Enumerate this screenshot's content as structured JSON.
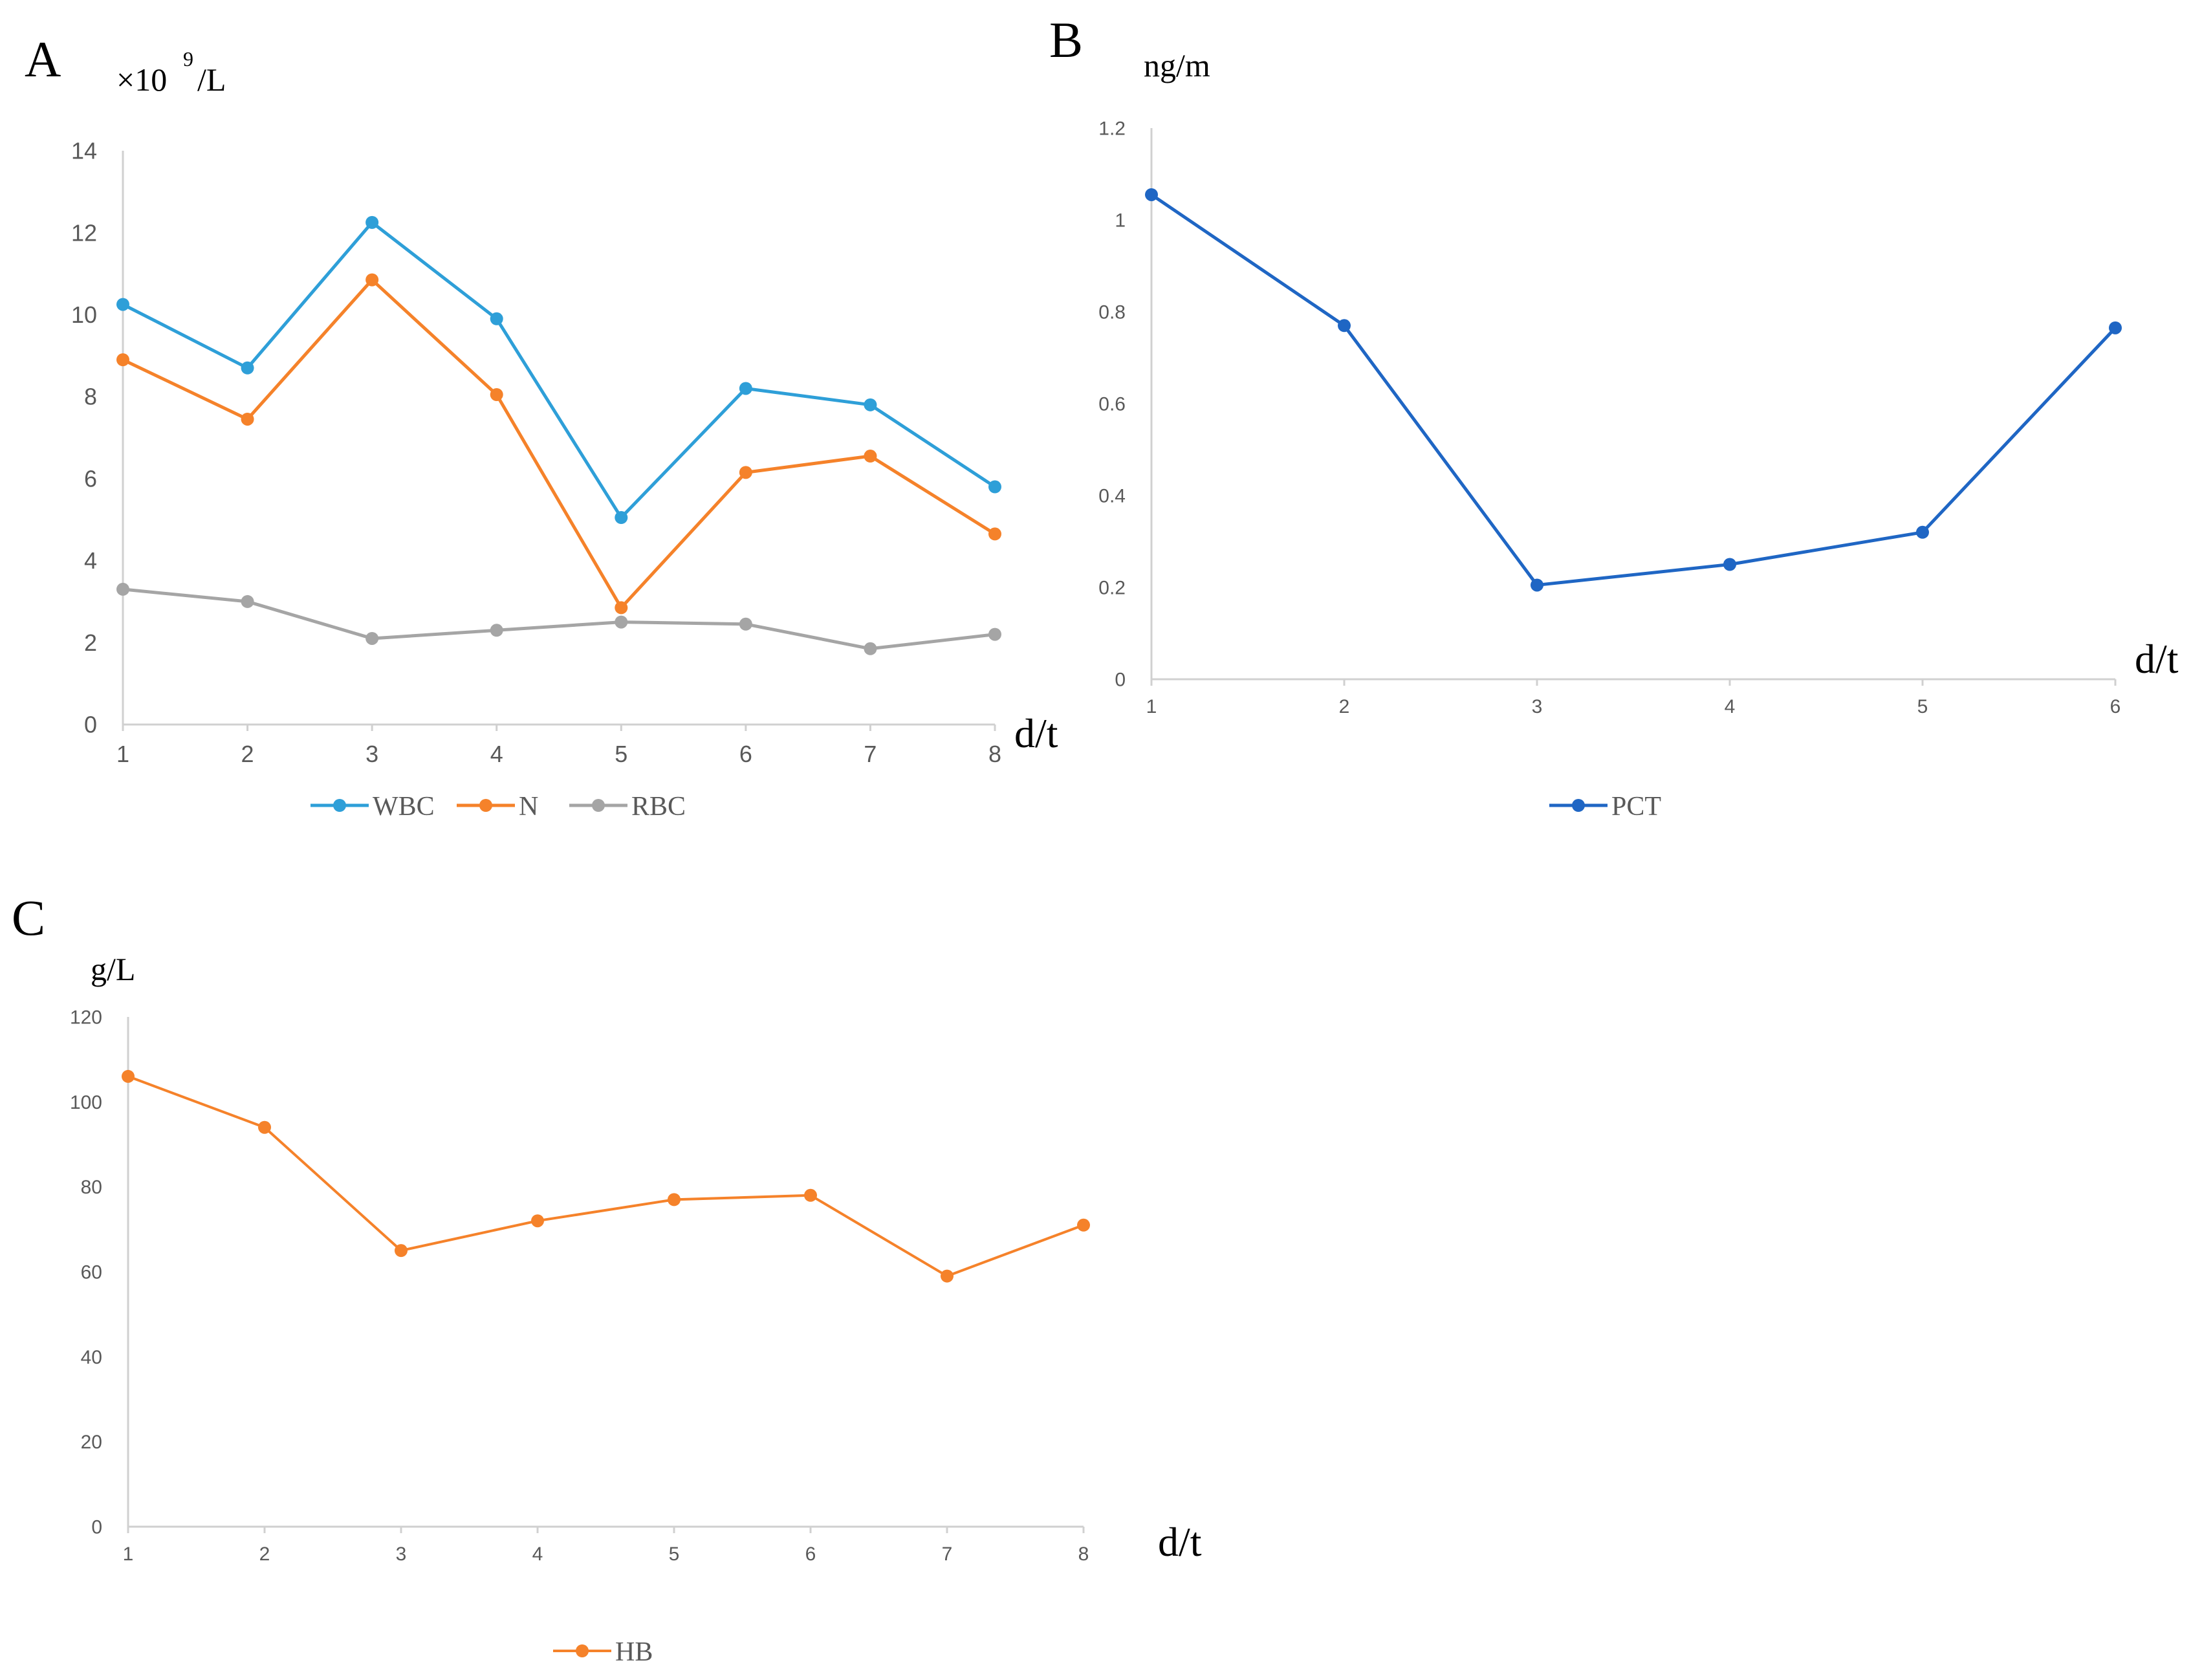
{
  "chart_data": [
    {
      "panel": "A",
      "type": "line",
      "ylabel_base": "×10",
      "ylabel_exp": "9",
      "ylabel_unit": "/L",
      "xlabel": "d/t",
      "categories": [
        "1",
        "2",
        "3",
        "4",
        "5",
        "6",
        "7",
        "8"
      ],
      "ylim": [
        0,
        14
      ],
      "yticks": [
        "0",
        "2",
        "4",
        "6",
        "8",
        "10",
        "12",
        "14"
      ],
      "grid": false,
      "legend": "bottom",
      "series": [
        {
          "name": "WBC",
          "color": "#2E9FD8",
          "values": [
            10.25,
            8.7,
            12.25,
            9.9,
            5.05,
            8.2,
            7.8,
            5.8
          ]
        },
        {
          "name": "N",
          "color": "#F5822A",
          "values": [
            8.9,
            7.45,
            10.85,
            8.05,
            2.85,
            6.15,
            6.55,
            4.65
          ]
        },
        {
          "name": "RBC",
          "color": "#A5A5A5",
          "values": [
            3.3,
            3.0,
            2.1,
            2.3,
            2.5,
            2.45,
            1.85,
            2.2
          ]
        }
      ]
    },
    {
      "panel": "B",
      "type": "line",
      "ylabel": "ng/m",
      "xlabel": "d/t",
      "categories": [
        "1",
        "2",
        "3",
        "4",
        "5",
        "6"
      ],
      "ylim": [
        0,
        1.2
      ],
      "yticks": [
        "0",
        "0.2",
        "0.4",
        "0.6",
        "0.8",
        "1",
        "1.2"
      ],
      "grid": false,
      "legend": "bottom",
      "series": [
        {
          "name": "PCT",
          "color": "#1F66C4",
          "values": [
            1.055,
            0.77,
            0.205,
            0.25,
            0.32,
            0.765
          ]
        }
      ]
    },
    {
      "panel": "C",
      "type": "line",
      "ylabel": "g/L",
      "xlabel": "d/t",
      "categories": [
        "1",
        "2",
        "3",
        "4",
        "5",
        "6",
        "7",
        "8"
      ],
      "ylim": [
        0,
        120
      ],
      "yticks": [
        "0",
        "20",
        "40",
        "60",
        "80",
        "100",
        "120"
      ],
      "grid": false,
      "legend": "bottom",
      "series": [
        {
          "name": "HB",
          "color": "#F5822A",
          "values": [
            106,
            94,
            65,
            72,
            77,
            78,
            59,
            71
          ]
        }
      ]
    }
  ]
}
